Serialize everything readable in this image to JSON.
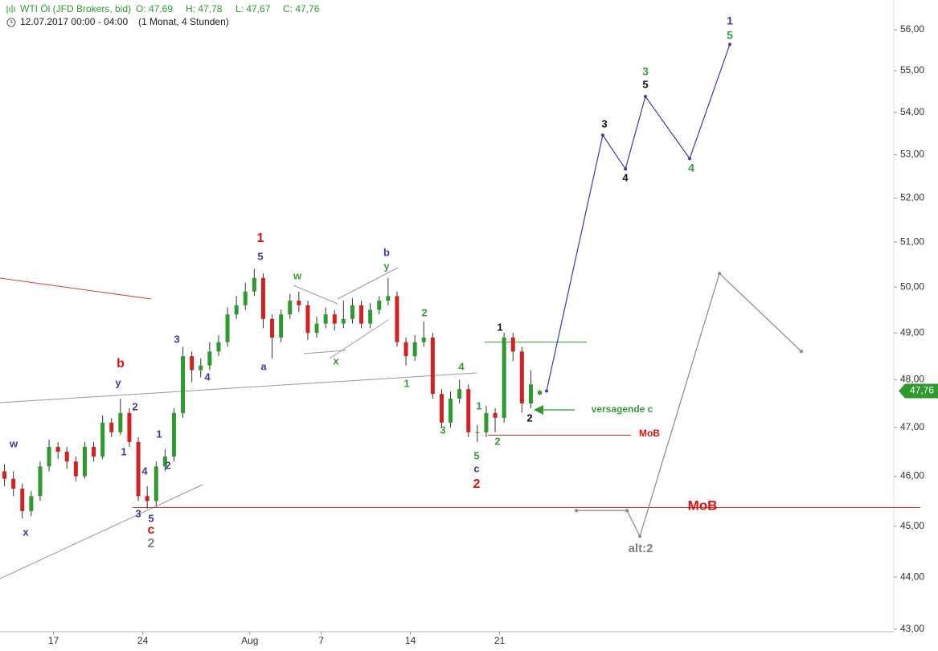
{
  "header": {
    "title": "WTI Öl (JFD Brokers, bid)",
    "ohlc": [
      "O: 47,69",
      "H: 47,78",
      "L: 47,67",
      "C: 47,76"
    ],
    "timestamp": "12.07.2017 00:00 - 04:00",
    "period": "(1 Monat, 4 Stunden)"
  },
  "chart_data": {
    "type": "candlestick",
    "log_scale": true,
    "ylim": [
      42.97,
      56.74
    ],
    "yticks": [
      {
        "value": 56,
        "label": "56,00"
      },
      {
        "value": 55,
        "label": "55,00"
      },
      {
        "value": 54,
        "label": "54,00"
      },
      {
        "value": 53,
        "label": "53,00"
      },
      {
        "value": 52,
        "label": "52,00"
      },
      {
        "value": 51,
        "label": "51,00"
      },
      {
        "value": 50,
        "label": "50,00"
      },
      {
        "value": 49,
        "label": "49,00"
      },
      {
        "value": 48,
        "label": "48,00"
      },
      {
        "value": 47,
        "label": "47,00"
      },
      {
        "value": 46,
        "label": "46,00"
      },
      {
        "value": 45,
        "label": "45,00"
      },
      {
        "value": 44,
        "label": "44,00"
      },
      {
        "value": 43,
        "label": "43,00"
      }
    ],
    "xlim": [
      0,
      50
    ],
    "xticks": [
      {
        "value": 3,
        "label": "17"
      },
      {
        "value": 8,
        "label": "24"
      },
      {
        "value": 14,
        "label": "Aug"
      },
      {
        "value": 18,
        "label": "7"
      },
      {
        "value": 23,
        "label": "14"
      },
      {
        "value": 28,
        "label": "21"
      }
    ],
    "up_color": "#2e9a2e",
    "down_color": "#d42020",
    "candles": {
      "x": [
        0.25,
        0.75,
        1.25,
        1.75,
        2.25,
        2.75,
        3.25,
        3.75,
        4.25,
        4.75,
        5.25,
        5.75,
        6.25,
        6.75,
        7.25,
        7.75,
        8.25,
        8.75,
        9.25,
        9.75,
        10.25,
        10.75,
        11.25,
        11.75,
        12.25,
        12.75,
        13.25,
        13.75,
        14.25,
        14.75,
        15.25,
        15.75,
        16.25,
        16.75,
        17.25,
        17.75,
        18.25,
        18.75,
        19.25,
        19.75,
        20.25,
        20.75,
        21.25,
        21.75,
        22.25,
        22.75,
        23.25,
        23.75,
        24.25,
        24.75,
        25.25,
        25.75,
        26.25,
        26.75,
        27.25,
        27.75,
        28.25,
        28.75,
        29.25,
        29.75,
        30.25
      ],
      "open": [
        46.1,
        45.95,
        45.75,
        45.3,
        45.6,
        46.2,
        46.6,
        46.5,
        46.3,
        46.0,
        46.6,
        46.4,
        47.1,
        46.9,
        47.3,
        46.7,
        45.6,
        45.5,
        46.2,
        46.4,
        47.3,
        48.5,
        48.2,
        48.3,
        48.6,
        48.8,
        49.4,
        49.6,
        49.9,
        50.2,
        49.3,
        48.9,
        49.4,
        49.7,
        49.6,
        49.0,
        49.2,
        49.4,
        49.2,
        49.3,
        49.6,
        49.2,
        49.5,
        49.7,
        49.8,
        48.8,
        48.5,
        48.8,
        48.9,
        47.7,
        47.1,
        47.6,
        47.8,
        46.9,
        46.9,
        47.3,
        47.2,
        48.9,
        48.6,
        47.5,
        47.69
      ],
      "high": [
        46.25,
        46.1,
        45.85,
        45.7,
        46.3,
        46.75,
        46.7,
        46.6,
        46.4,
        46.7,
        46.7,
        47.25,
        47.2,
        47.6,
        47.4,
        46.8,
        45.8,
        46.3,
        46.55,
        47.4,
        48.7,
        48.6,
        48.45,
        48.8,
        48.95,
        49.55,
        49.8,
        50.1,
        50.4,
        50.3,
        49.4,
        49.5,
        49.85,
        49.9,
        49.7,
        49.35,
        49.55,
        49.5,
        49.7,
        49.75,
        49.7,
        49.65,
        49.8,
        50.2,
        49.9,
        48.9,
        48.95,
        49.25,
        49.0,
        47.8,
        47.75,
        48.0,
        47.9,
        47.05,
        47.45,
        47.4,
        49.0,
        49.0,
        48.7,
        48.2,
        47.78
      ],
      "low": [
        45.8,
        45.6,
        45.15,
        45.2,
        45.5,
        46.1,
        46.35,
        46.15,
        45.9,
        45.95,
        46.3,
        46.35,
        46.8,
        46.85,
        46.6,
        45.5,
        45.35,
        45.4,
        46.1,
        46.3,
        47.2,
        47.95,
        48.05,
        48.2,
        48.5,
        48.7,
        49.3,
        49.5,
        49.8,
        49.1,
        48.45,
        48.8,
        49.3,
        49.45,
        48.85,
        48.9,
        49.1,
        49.05,
        49.1,
        49.2,
        49.1,
        49.1,
        49.4,
        49.6,
        48.7,
        48.3,
        48.4,
        48.7,
        47.6,
        47.0,
        47.0,
        47.5,
        46.8,
        46.7,
        46.8,
        46.9,
        47.1,
        48.4,
        47.3,
        47.4,
        47.67
      ],
      "close": [
        45.95,
        45.75,
        45.3,
        45.6,
        46.2,
        46.6,
        46.5,
        46.3,
        46.0,
        46.6,
        46.4,
        47.1,
        46.9,
        47.3,
        46.7,
        45.6,
        45.5,
        46.2,
        46.4,
        47.3,
        48.5,
        48.2,
        48.3,
        48.6,
        48.8,
        49.4,
        49.6,
        49.9,
        50.2,
        49.3,
        48.9,
        49.4,
        49.7,
        49.6,
        49.0,
        49.2,
        49.4,
        49.2,
        49.3,
        49.6,
        49.2,
        49.5,
        49.7,
        49.8,
        48.8,
        48.5,
        48.8,
        48.9,
        47.7,
        47.1,
        47.6,
        47.8,
        46.9,
        46.9,
        47.3,
        47.2,
        48.9,
        48.6,
        47.5,
        47.9,
        47.76
      ]
    },
    "last_price": {
      "value": 47.76,
      "label": "47,76",
      "color": "#2e9a2e"
    },
    "projections": [
      {
        "color": "#3a3aaa",
        "x": [
          30.63,
          33.78,
          35.05,
          36.17,
          38.65,
          40.9
        ],
        "values": [
          47.76,
          53.46,
          52.67,
          54.38,
          52.91,
          55.64
        ]
      },
      {
        "color": "#888888",
        "x": [
          32.3,
          35.14,
          35.86,
          40.32,
          44.91
        ],
        "values": [
          45.31,
          45.31,
          44.8,
          50.3,
          48.6
        ]
      }
    ],
    "hlines": [
      {
        "value": 45.37,
        "color": "#e03030"
      },
      {
        "value": 46.84,
        "color": "#e03030"
      },
      {
        "value": 48.8,
        "color": "#2e9a2e"
      }
    ],
    "annotations": [
      {
        "text": "w",
        "color": "#3a3a9a"
      },
      {
        "text": "x",
        "color": "#3a3a9a"
      },
      {
        "text": "y",
        "color": "#3a3a9a"
      },
      {
        "text": "2",
        "color": "#3a3a9a"
      },
      {
        "text": "1",
        "color": "#3a3a9a"
      },
      {
        "text": "4",
        "color": "#3a3a9a"
      },
      {
        "text": "3",
        "color": "#3a3a9a"
      },
      {
        "text": "5",
        "color": "#3a3a9a"
      },
      {
        "text": "2",
        "color": "#3a3a9a"
      },
      {
        "text": "1",
        "color": "#3a3a9a"
      },
      {
        "text": "3",
        "color": "#3a3a9a"
      },
      {
        "text": "4",
        "color": "#3a3a9a"
      },
      {
        "text": "5",
        "color": "#3a3a9a"
      },
      {
        "text": "a",
        "color": "#3a3a9a"
      },
      {
        "text": "b",
        "color": "#3a3a9a"
      },
      {
        "text": "c",
        "color": "#3a3a9a"
      },
      {
        "text": "1",
        "color": "#3a3a9a"
      },
      {
        "text": "b",
        "color": "#e01010"
      },
      {
        "text": "c",
        "color": "#e01010"
      },
      {
        "text": "1",
        "color": "#e01010"
      },
      {
        "text": "2",
        "color": "#e01010"
      },
      {
        "text": "MoB",
        "color": "#e01010"
      },
      {
        "text": "MoB",
        "color": "#e01010"
      },
      {
        "text": "2",
        "color": "#808080"
      },
      {
        "text": "alt:2",
        "color": "#808080"
      },
      {
        "text": "w",
        "color": "#3a9a3a"
      },
      {
        "text": "y",
        "color": "#3a9a3a"
      },
      {
        "text": "x",
        "color": "#3a9a3a"
      },
      {
        "text": "2",
        "color": "#3a9a3a"
      },
      {
        "text": "1",
        "color": "#3a9a3a"
      },
      {
        "text": "3",
        "color": "#3a9a3a"
      },
      {
        "text": "4",
        "color": "#3a9a3a"
      },
      {
        "text": "1",
        "color": "#3a9a3a"
      },
      {
        "text": "5",
        "color": "#3a9a3a"
      },
      {
        "text": "2",
        "color": "#3a9a3a"
      },
      {
        "text": "3",
        "color": "#3a9a3a"
      },
      {
        "text": "4",
        "color": "#3a9a3a"
      },
      {
        "text": "5",
        "color": "#3a9a3a"
      },
      {
        "text": "versagende c",
        "color": "#3a9a3a"
      },
      {
        "text": "1",
        "color": "#111111"
      },
      {
        "text": "2",
        "color": "#111111"
      },
      {
        "text": "3",
        "color": "#111111"
      },
      {
        "text": "4",
        "color": "#111111"
      },
      {
        "text": "5",
        "color": "#111111"
      }
    ]
  }
}
